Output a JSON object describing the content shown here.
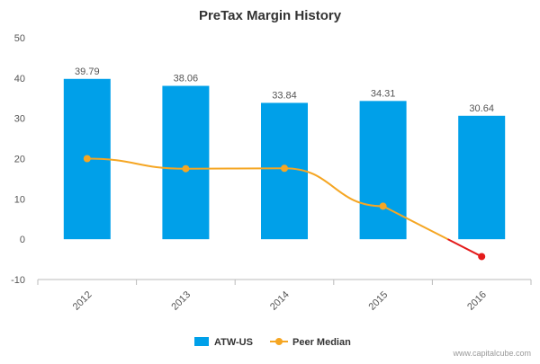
{
  "colors": {
    "bar": "#00a0e9",
    "peer": "#f5a623",
    "peer_negative": "#e41b1b",
    "axis": "#bbbbbb"
  },
  "legend": {
    "bar_label": "ATW-US",
    "line_label": "Peer Median"
  },
  "credit": "www.capitalcube.com",
  "chart_data": {
    "type": "bar",
    "title": "PreTax Margin History",
    "xlabel": "",
    "ylabel": "",
    "categories": [
      "2012",
      "2013",
      "2014",
      "2015",
      "2016"
    ],
    "ylim": [
      -10,
      50
    ],
    "yticks": [
      -10,
      0,
      10,
      20,
      30,
      40,
      50
    ],
    "series": [
      {
        "name": "ATW-US",
        "type": "bar",
        "values": [
          39.79,
          38.06,
          33.84,
          34.31,
          30.64
        ],
        "labels": [
          "39.79",
          "38.06",
          "33.84",
          "34.31",
          "30.64"
        ]
      },
      {
        "name": "Peer Median",
        "type": "line",
        "values": [
          20.0,
          17.5,
          17.6,
          8.2,
          -4.3
        ]
      }
    ],
    "legend_position": "bottom-center",
    "grid": false
  }
}
